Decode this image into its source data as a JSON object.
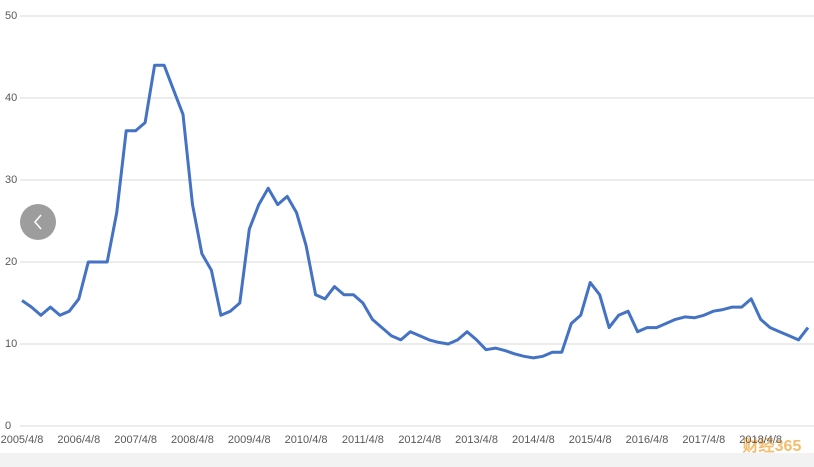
{
  "chart_data": {
    "type": "line",
    "color": "#4472c4",
    "grid": true,
    "watermark": "财经365",
    "x": [
      "2005/4/8",
      null,
      null,
      null,
      null,
      null,
      "2006/4/8",
      null,
      null,
      null,
      null,
      null,
      "2007/4/8",
      null,
      null,
      null,
      null,
      null,
      "2008/4/8",
      null,
      null,
      null,
      null,
      null,
      "2009/4/8",
      null,
      null,
      null,
      null,
      null,
      "2010/4/8",
      null,
      null,
      null,
      null,
      null,
      "2011/4/8",
      null,
      null,
      null,
      null,
      null,
      "2012/4/8",
      null,
      null,
      null,
      null,
      null,
      "2013/4/8",
      null,
      null,
      null,
      null,
      null,
      "2014/4/8",
      null,
      null,
      null,
      null,
      null,
      "2015/4/8",
      null,
      null,
      null,
      null,
      null,
      "2016/4/8",
      null,
      null,
      null,
      null,
      null,
      "2017/4/8",
      null,
      null,
      null,
      null,
      null,
      "2018/4/8",
      null,
      null,
      null,
      null,
      null
    ],
    "values": [
      15.3,
      14.5,
      13.5,
      14.5,
      13.5,
      14,
      15.5,
      20,
      20,
      20,
      26,
      36,
      36,
      37,
      44,
      44,
      41,
      38,
      27,
      21,
      19,
      13.5,
      14,
      15,
      24,
      27,
      29,
      27,
      28,
      26,
      22,
      16,
      15.5,
      17,
      16,
      16,
      15,
      13,
      12,
      11,
      10.5,
      11.5,
      11,
      10.5,
      10.2,
      10,
      10.5,
      11.5,
      10.5,
      9.3,
      9.5,
      9.2,
      8.8,
      8.5,
      8.3,
      8.5,
      9,
      9,
      12.5,
      13.5,
      17.5,
      16,
      12,
      13.5,
      14,
      11.5,
      12,
      12,
      12.5,
      13,
      13.3,
      13.2,
      13.5,
      14,
      14.2,
      14.5,
      14.5,
      15.5,
      13,
      12,
      11.5,
      11,
      10.5,
      12
    ],
    "ylim": [
      0,
      50
    ],
    "yticks": [
      0,
      10,
      20,
      30,
      40,
      50
    ]
  }
}
